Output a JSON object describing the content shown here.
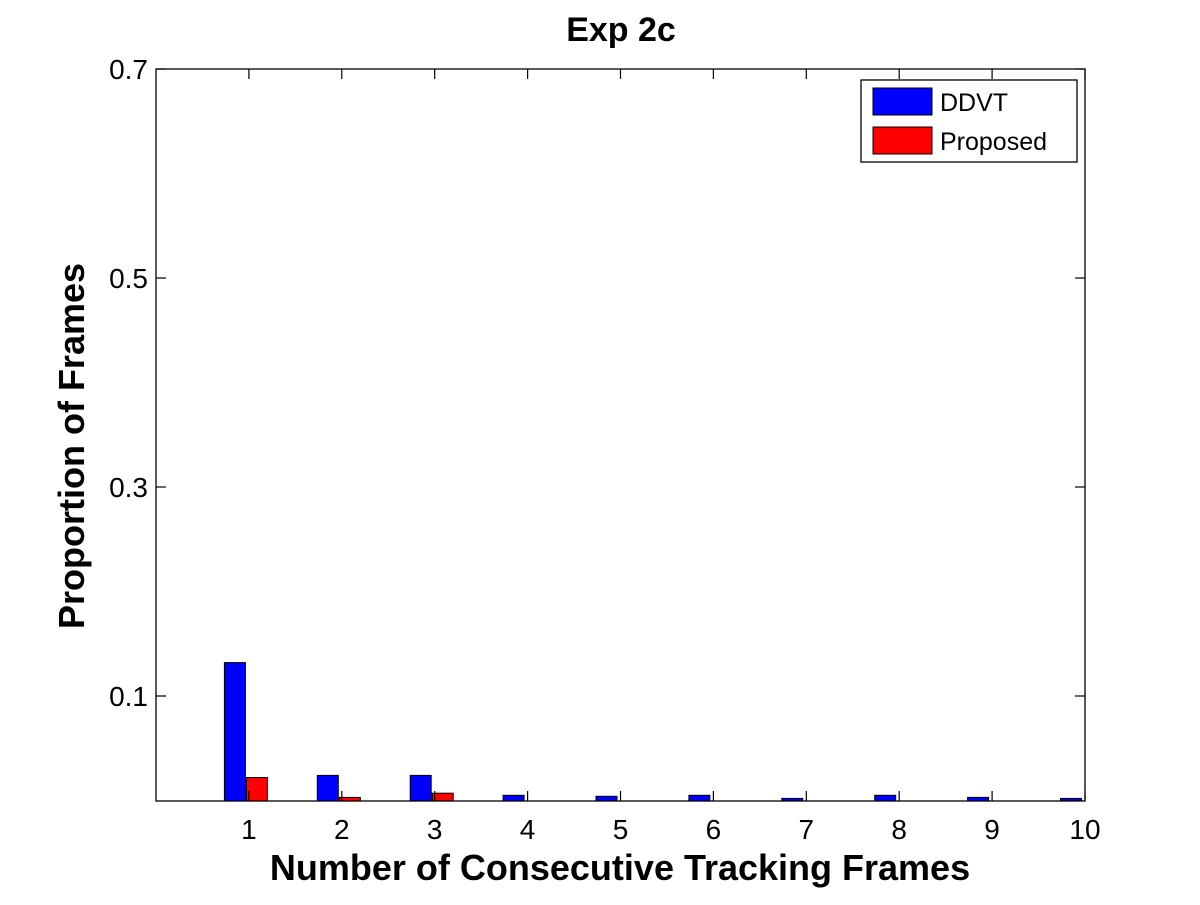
{
  "chart_data": {
    "type": "bar",
    "title": "Exp 2c",
    "xlabel": "Number of Consecutive Tracking Frames",
    "ylabel": "Proportion of Frames",
    "categories": [
      "1",
      "2",
      "3",
      "4",
      "5",
      "6",
      "7",
      "8",
      "9",
      "10"
    ],
    "series": [
      {
        "name": "DDVT",
        "color": "#0000ff",
        "values": [
          0.132,
          0.024,
          0.024,
          0.005,
          0.004,
          0.005,
          0.002,
          0.005,
          0.003,
          0.002
        ]
      },
      {
        "name": "Proposed",
        "color": "#ff0000",
        "values": [
          0.022,
          0.003,
          0.007,
          0,
          0,
          0,
          0,
          0,
          0,
          0
        ]
      }
    ],
    "yticks": [
      "0.1",
      "0.3",
      "0.5",
      "0.7"
    ],
    "ytick_values": [
      0.1,
      0.3,
      0.5,
      0.7
    ],
    "ylim": [
      0,
      0.7
    ],
    "xlim": [
      0,
      10
    ],
    "grid": false,
    "legend_position": "top-right"
  }
}
